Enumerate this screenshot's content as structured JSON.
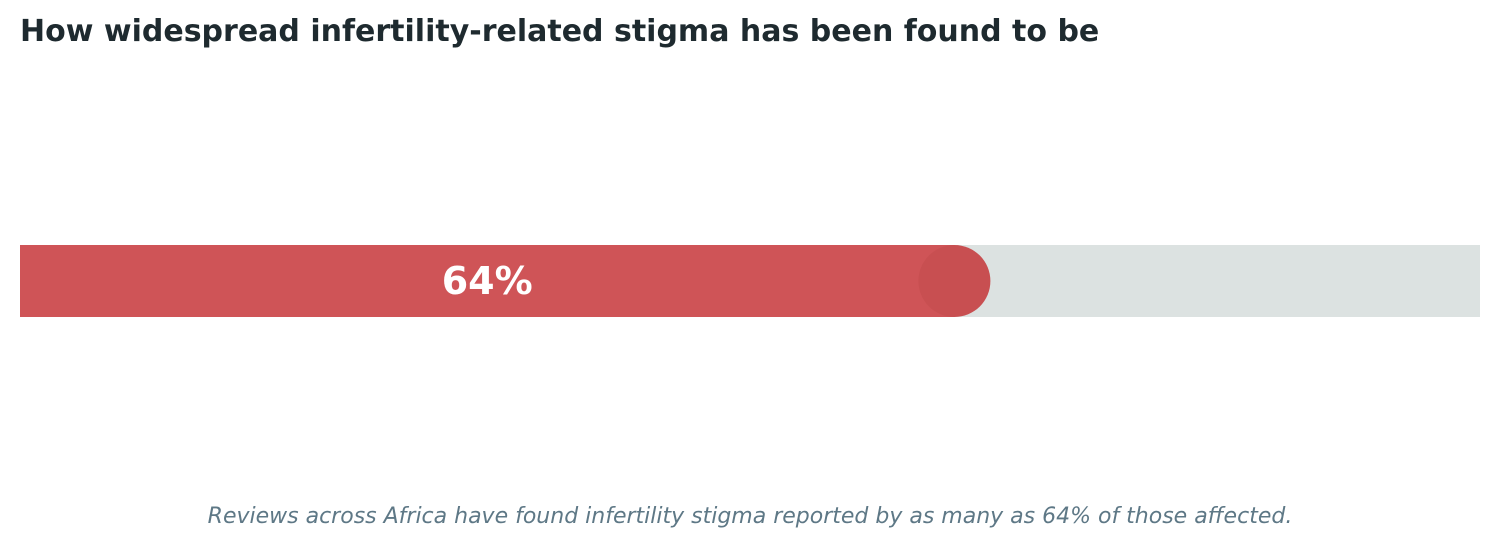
{
  "title": "How widespread infertility-related stigma has been found to be",
  "caption": "Reviews across Africa have found infertility stigma reported by as many as 64% of those affected.",
  "chart_data": {
    "type": "bar",
    "orientation": "horizontal",
    "values": [
      64
    ],
    "value_labels": [
      "64%"
    ],
    "xlim": [
      0,
      100
    ],
    "grid": false
  },
  "colors": {
    "fill": "#cf5457",
    "fill_cap": "#c84f51",
    "track": "#dce2e1",
    "label": "#ffffff"
  }
}
